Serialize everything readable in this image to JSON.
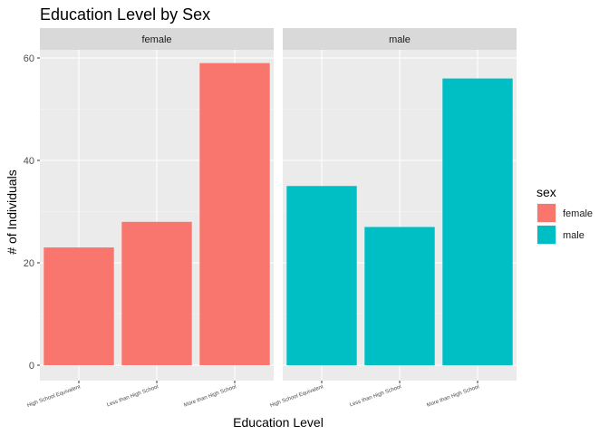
{
  "chart_data": {
    "type": "bar",
    "title": "Education Level by Sex",
    "xlabel": "Education Level",
    "ylabel": "# of Individuals",
    "categories": [
      "High School Equivalent",
      "Less than High School",
      "More than High School"
    ],
    "ylim": [
      0,
      63
    ],
    "yticks": [
      0,
      20,
      40,
      60
    ],
    "grid": true,
    "legend_title": "sex",
    "legend_position": "right",
    "facets": [
      {
        "name": "female",
        "color": "#F8766D",
        "values": [
          23,
          28,
          59
        ]
      },
      {
        "name": "male",
        "color": "#00BFC4",
        "values": [
          35,
          27,
          56
        ]
      }
    ]
  }
}
